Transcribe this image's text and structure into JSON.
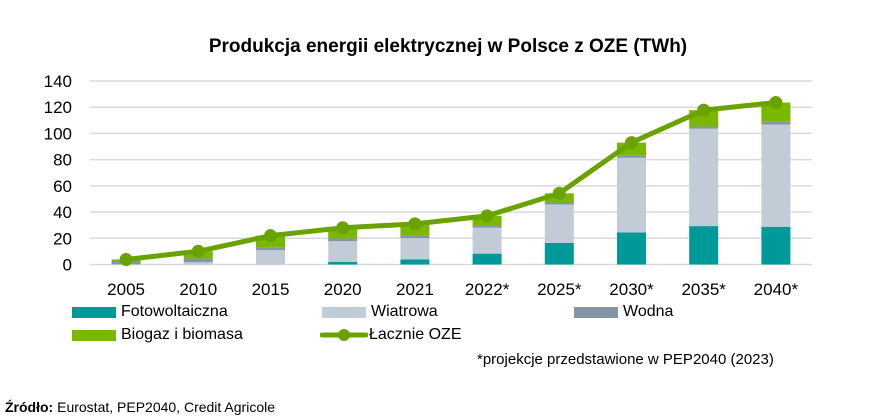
{
  "chart_data": {
    "type": "bar",
    "stacked": true,
    "title": "Produkcja energii elektrycznej w Polsce z OZE (TWh)",
    "xlabel": "",
    "ylabel": "",
    "ylim": [
      0,
      140
    ],
    "yticks": [
      "0",
      "20",
      "40",
      "60",
      "80",
      "100",
      "120",
      "140"
    ],
    "grid": true,
    "legend_position": "bottom",
    "categories": [
      "2005",
      "2010",
      "2015",
      "2020",
      "2021",
      "2022*",
      "2025*",
      "2030*",
      "2035*",
      "2040*"
    ],
    "series": [
      {
        "name": "Fotowoltaiczna",
        "color": "#00999a",
        "values": [
          0,
          0,
          0.1,
          2,
          3.9,
          8.3,
          16.5,
          24.4,
          29.3,
          28.8
        ]
      },
      {
        "name": "Wiatrowa",
        "color": "#c1ccd6",
        "values": [
          0.1,
          1.7,
          10.9,
          15.8,
          16.2,
          19.8,
          29.3,
          57,
          74.3,
          78
        ]
      },
      {
        "name": "Wodna",
        "color": "#8496a6",
        "values": [
          2.2,
          2.9,
          1.8,
          2.1,
          2.3,
          2,
          1.5,
          1.6,
          1.7,
          2
        ]
      },
      {
        "name": "Biogaz i biomasa",
        "color": "#7ab800",
        "values": [
          1.5,
          5.5,
          9.2,
          8.1,
          8.6,
          7,
          7,
          10,
          12.5,
          14.8
        ]
      },
      {
        "name": "Łacznie OZE",
        "type": "line",
        "color": "#6aa300",
        "values": [
          3.8,
          10.1,
          22,
          28,
          31,
          37.1,
          54.3,
          93,
          117.8,
          123.6
        ]
      }
    ],
    "footnote": "*projekcje przedstawione w PEP2040 (2023)"
  },
  "source": {
    "label": "Źródło:",
    "text": "Eurostat, PEP2040, Credit Agricole"
  }
}
